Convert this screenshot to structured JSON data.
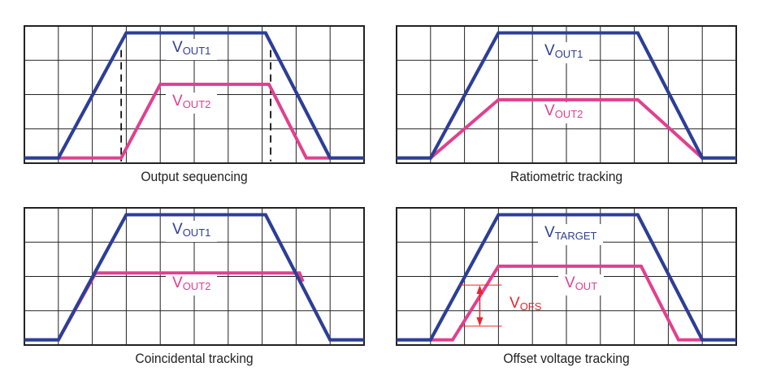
{
  "colors": {
    "blue": "#2d3e97",
    "pink": "#e0408f",
    "red": "#e8262b",
    "grid": "#222222"
  },
  "chart_data": [
    {
      "type": "line",
      "title": "Output sequencing",
      "grid": true,
      "xlim": [
        0,
        10
      ],
      "ylim": [
        0,
        4
      ],
      "labels": [
        {
          "main": "V",
          "sub": "OUT1"
        },
        {
          "main": "V",
          "sub": "OUT2"
        }
      ],
      "series": [
        {
          "color": "blue",
          "points": [
            [
              0,
              0.15
            ],
            [
              1,
              0.15
            ],
            [
              3,
              3.8
            ],
            [
              7.1,
              3.8
            ],
            [
              9,
              0.15
            ],
            [
              10,
              0.15
            ]
          ]
        },
        {
          "color": "pink",
          "points": [
            [
              1,
              0.15
            ],
            [
              2.85,
              0.15
            ],
            [
              4,
              2.3
            ],
            [
              7.2,
              2.3
            ],
            [
              8.3,
              0.15
            ],
            [
              9,
              0.15
            ]
          ]
        }
      ],
      "dashed_markers": [
        2.85,
        7.25
      ]
    },
    {
      "type": "line",
      "title": "Ratiometric tracking",
      "grid": true,
      "xlim": [
        0,
        10
      ],
      "ylim": [
        0,
        4
      ],
      "labels": [
        {
          "main": "V",
          "sub": "OUT1"
        },
        {
          "main": "V",
          "sub": "OUT2"
        }
      ],
      "series": [
        {
          "color": "blue",
          "points": [
            [
              0,
              0.15
            ],
            [
              1,
              0.15
            ],
            [
              3,
              3.8
            ],
            [
              7.1,
              3.8
            ],
            [
              9,
              0.15
            ],
            [
              10,
              0.15
            ]
          ]
        },
        {
          "color": "pink",
          "points": [
            [
              1,
              0.15
            ],
            [
              3,
              1.85
            ],
            [
              7.1,
              1.85
            ],
            [
              9,
              0.15
            ]
          ]
        }
      ]
    },
    {
      "type": "line",
      "title": "Coincidental tracking",
      "grid": true,
      "xlim": [
        0,
        10
      ],
      "ylim": [
        0,
        4
      ],
      "labels": [
        {
          "main": "V",
          "sub": "OUT1"
        },
        {
          "main": "V",
          "sub": "OUT2"
        }
      ],
      "series": [
        {
          "color": "blue",
          "points": [
            [
              0,
              0.15
            ],
            [
              1,
              0.15
            ],
            [
              3,
              3.8
            ],
            [
              7.1,
              3.8
            ],
            [
              9,
              0.15
            ],
            [
              10,
              0.15
            ]
          ]
        },
        {
          "color": "pink",
          "points": [
            [
              1,
              0.15
            ],
            [
              2.1,
              2.1
            ],
            [
              8.1,
              2.1
            ],
            [
              8.2,
              1.85
            ]
          ]
        }
      ]
    },
    {
      "type": "line",
      "title": "Offset voltage tracking",
      "grid": true,
      "xlim": [
        0,
        10
      ],
      "ylim": [
        0,
        4
      ],
      "labels": [
        {
          "main": "V",
          "sub": "TARGET"
        },
        {
          "main": "V",
          "sub": "OUT"
        },
        {
          "main": "V",
          "sub": "OFS"
        }
      ],
      "series": [
        {
          "color": "blue",
          "points": [
            [
              0,
              0.15
            ],
            [
              1,
              0.15
            ],
            [
              3,
              3.8
            ],
            [
              7.1,
              3.8
            ],
            [
              9,
              0.15
            ],
            [
              10,
              0.15
            ]
          ]
        },
        {
          "color": "pink",
          "points": [
            [
              1,
              0.15
            ],
            [
              1.65,
              0.15
            ],
            [
              3,
              2.3
            ],
            [
              7.2,
              2.3
            ],
            [
              8.3,
              0.15
            ],
            [
              9,
              0.15
            ]
          ]
        }
      ],
      "offset_arrow": {
        "x": 2.0,
        "from": 0.55,
        "to": 1.75
      }
    }
  ]
}
